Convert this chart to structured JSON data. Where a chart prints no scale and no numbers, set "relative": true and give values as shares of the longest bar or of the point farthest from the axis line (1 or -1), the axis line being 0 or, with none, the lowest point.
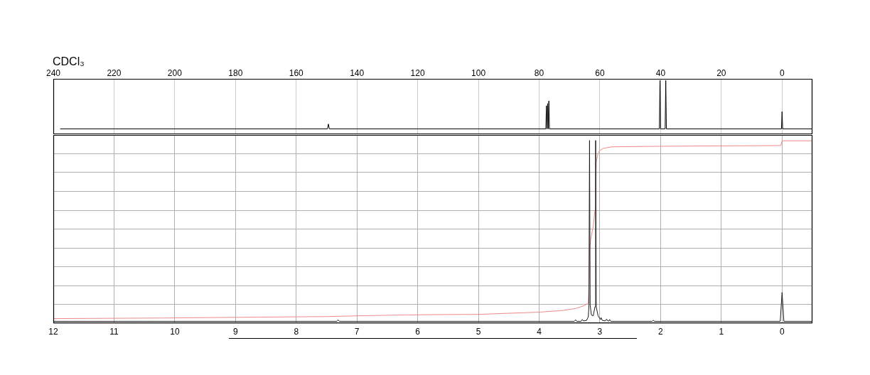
{
  "chart_data": [
    {
      "type": "line",
      "title": "CDCl₃",
      "xlim": [
        240,
        -10
      ],
      "xticks": [
        240,
        220,
        200,
        180,
        160,
        140,
        120,
        100,
        80,
        60,
        40,
        20,
        0
      ],
      "relative": true,
      "grid": "x",
      "series": [
        {
          "color": "#000000",
          "x": [
            237.7,
            149.7,
            149.4,
            149.1,
            77.8,
            77.6,
            77.4,
            77.2,
            77.0,
            76.8,
            76.6,
            40.4,
            40.2,
            40.0,
            38.5,
            38.3,
            38.1,
            0.2,
            0,
            -0.2,
            -10
          ],
          "values": [
            0.1,
            0.1,
            0.19,
            0.1,
            0.1,
            0.53,
            0.1,
            0.57,
            0.1,
            0.62,
            0.1,
            0.1,
            1,
            0.1,
            0.1,
            1,
            0.1,
            0.1,
            0.42,
            0.1,
            0.1
          ]
        }
      ]
    },
    {
      "type": "line",
      "xlim": [
        12,
        -0.5
      ],
      "xticks": [
        12,
        11,
        10,
        9,
        8,
        7,
        6,
        5,
        4,
        3,
        2,
        1,
        0
      ],
      "relative": true,
      "grid": true,
      "series": [
        {
          "color": "#1a1a1a",
          "x": [
            12,
            7.33,
            7.31,
            7.29,
            3.42,
            3.4,
            3.38,
            3.31,
            3.29,
            3.27,
            3.22,
            3.19,
            3.18,
            3.17,
            3.16,
            3.14,
            3.11,
            3.08,
            3.07,
            3.06,
            3.03,
            2.99,
            2.98,
            2.96,
            2.91,
            2.89,
            2.87,
            2.85,
            2.84,
            2.82,
            2.14,
            2.12,
            2.1,
            0.03,
            0,
            -0.03,
            -0.5
          ],
          "values": [
            0.01,
            0.01,
            0.018,
            0.01,
            0.01,
            0.018,
            0.01,
            0.01,
            0.02,
            0.012,
            0.015,
            0.035,
            0.1,
            1,
            0.1,
            0.045,
            0.04,
            0.09,
            1,
            0.09,
            0.04,
            0.02,
            0.03,
            0.015,
            0.012,
            0.022,
            0.012,
            0.012,
            0.02,
            0.01,
            0.01,
            0.016,
            0.01,
            0.01,
            0.168,
            0.01,
            0.01
          ]
        },
        {
          "color": "#f08a8a",
          "x": [
            12,
            10.2,
            8.6,
            7.5,
            7.0,
            6.2,
            5.6,
            5.0,
            4.6,
            4.0,
            3.6,
            3.4,
            3.25,
            3.19,
            3.18,
            3.17,
            3.15,
            3.11,
            3.08,
            3.07,
            3.06,
            3.03,
            3.0,
            2.94,
            2.8,
            2.0,
            1.0,
            0.02,
            0,
            -0.5
          ],
          "values": [
            0.025,
            0.028,
            0.033,
            0.036,
            0.04,
            0.045,
            0.047,
            0.048,
            0.053,
            0.06,
            0.07,
            0.08,
            0.097,
            0.111,
            0.2,
            0.4,
            0.46,
            0.53,
            0.62,
            0.75,
            0.88,
            0.93,
            0.945,
            0.957,
            0.965,
            0.968,
            0.97,
            0.972,
            0.998,
            0.998
          ]
        }
      ]
    }
  ]
}
